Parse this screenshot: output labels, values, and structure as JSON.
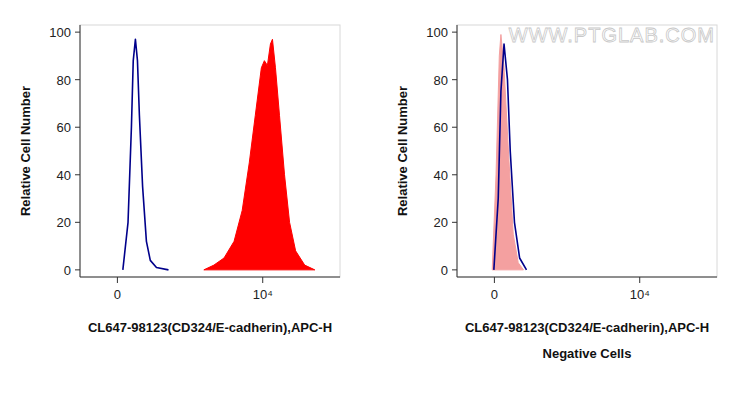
{
  "chart_data": [
    {
      "type": "area",
      "x_label": "CL647-98123(CD324/E-cadherin),APC-H",
      "y_label": "Relative Cell Number",
      "log": "x",
      "grid": false,
      "xlim": [
        -100,
        262144
      ],
      "xticks": [
        0,
        {
          "value": 10000,
          "label": "10⁴"
        }
      ],
      "ylim": [
        -3,
        103
      ],
      "yticks": [
        0,
        20,
        40,
        60,
        80,
        100
      ],
      "series": [
        {
          "type": "area",
          "color": "#ff0000",
          "x": [
            830,
            1270,
            1950,
            2980,
            4200,
            5660,
            7310,
            9440,
            10730,
            12190,
            13850,
            15090,
            17140,
            20320,
            25140,
            31100,
            40170,
            59000,
            90300
          ],
          "values": [
            0,
            2,
            5,
            12,
            25,
            45,
            65,
            85,
            88,
            86,
            95,
            97,
            85,
            65,
            40,
            20,
            8,
            2,
            0
          ]
        },
        {
          "type": "line",
          "color": "#00008b",
          "x": [
            10,
            20,
            27,
            31,
            36,
            41,
            46,
            55,
            67,
            81,
            108,
            184
          ],
          "values": [
            0,
            20,
            60,
            88,
            97,
            88,
            65,
            35,
            12,
            4,
            1,
            0
          ]
        }
      ]
    },
    {
      "type": "area",
      "x_label": "CL647-98123(CD324/E-cadherin),APC-H",
      "subtitle": "Negative Cells",
      "y_label": "Relative Cell Number",
      "watermark": "WWW.PTGLAB.COM",
      "log": "x",
      "grid": false,
      "xlim": [
        -100,
        262144
      ],
      "xticks": [
        0,
        {
          "value": 10000,
          "label": "10⁴"
        }
      ],
      "ylim": [
        -3,
        103
      ],
      "yticks": [
        0,
        20,
        40,
        60,
        80,
        100
      ],
      "series": [
        {
          "type": "area",
          "color": "#f4a0a0",
          "x": [
            -4,
            3,
            9,
            12,
            18,
            27,
            38,
            51,
            67
          ],
          "values": [
            0,
            40,
            90,
            99,
            85,
            50,
            15,
            3,
            0
          ]
        },
        {
          "type": "line",
          "color": "#00008b",
          "x": [
            -1,
            7,
            12,
            18,
            25,
            31,
            41,
            55,
            78
          ],
          "values": [
            0,
            30,
            75,
            95,
            80,
            50,
            20,
            5,
            0
          ]
        }
      ]
    }
  ]
}
